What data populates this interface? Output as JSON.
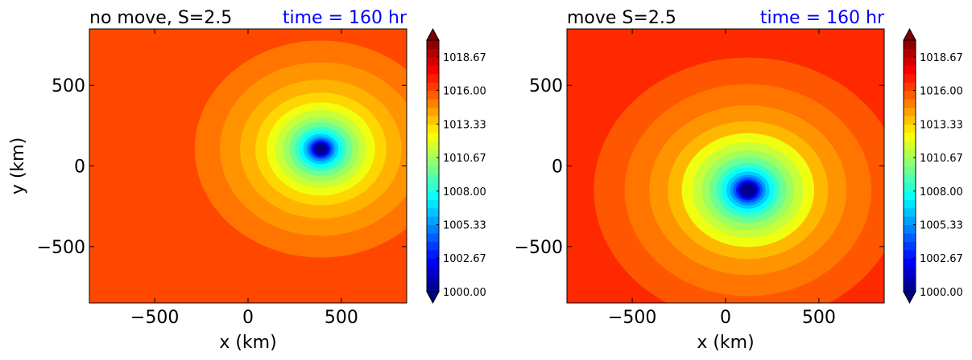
{
  "chart_data": [
    {
      "type": "heatmap",
      "title_left": "no move, S=2.5",
      "title_right": "time = 160 hr",
      "xlabel": "x (km)",
      "ylabel": "y (km)",
      "xlim": [
        -850,
        850
      ],
      "ylim": [
        -850,
        850
      ],
      "xticks": [
        -500,
        0,
        500
      ],
      "yticks": [
        -500,
        0,
        500
      ],
      "xtick_labels": [
        "−500",
        "0",
        "500"
      ],
      "ytick_labels": [
        "−500",
        "0",
        "500"
      ],
      "center_km": [
        390,
        105
      ],
      "ambient_level": 1015.0,
      "colorbar": {
        "min": 1000.0,
        "max": 1020.0,
        "extend": "both",
        "tick_values": [
          1000.0,
          1002.67,
          1005.33,
          1008.0,
          1010.67,
          1013.33,
          1016.0,
          1018.67
        ],
        "tick_labels": [
          "1000.00",
          "1002.67",
          "1005.33",
          "1008.00",
          "1010.67",
          "1013.33",
          "1016.00",
          "1018.67"
        ]
      }
    },
    {
      "type": "heatmap",
      "title_left": "move S=2.5",
      "title_right": "time = 160 hr",
      "xlabel": "x (km)",
      "ylabel": "",
      "xlim": [
        -850,
        850
      ],
      "ylim": [
        -850,
        850
      ],
      "xticks": [
        -500,
        0,
        500
      ],
      "yticks": [
        -500,
        0,
        500
      ],
      "xtick_labels": [
        "−500",
        "0",
        "500"
      ],
      "ytick_labels": [
        "−500",
        "0",
        "500"
      ],
      "center_km": [
        120,
        -150
      ],
      "ambient_level": 1015.6,
      "colorbar": {
        "min": 1000.0,
        "max": 1020.0,
        "extend": "both",
        "tick_values": [
          1000.0,
          1002.67,
          1005.33,
          1008.0,
          1010.67,
          1013.33,
          1016.0,
          1018.67
        ],
        "tick_labels": [
          "1000.00",
          "1002.67",
          "1005.33",
          "1008.00",
          "1010.67",
          "1013.33",
          "1016.00",
          "1018.67"
        ]
      }
    }
  ],
  "colors": {
    "title_right": "#0000ff",
    "text": "#000000",
    "colormap": "jet"
  }
}
